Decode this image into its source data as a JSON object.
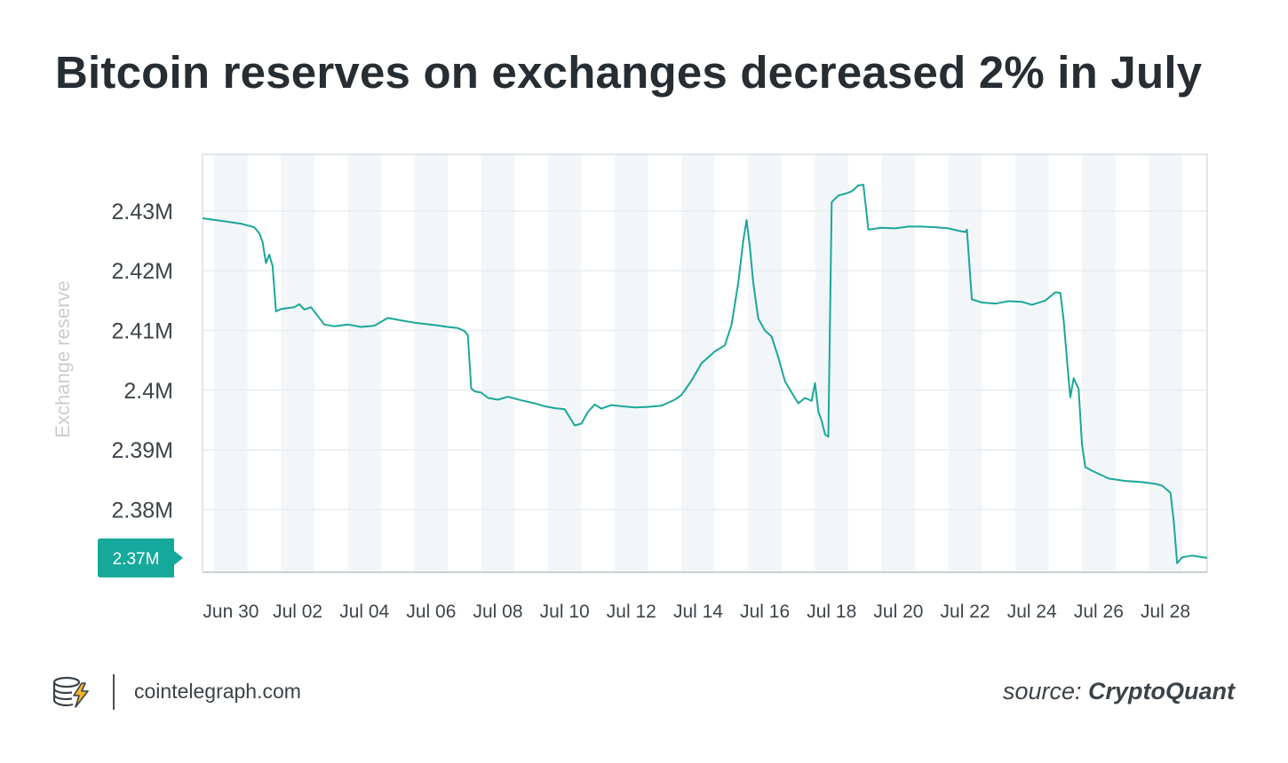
{
  "chart_data": {
    "type": "line",
    "title": "Bitcoin reserves on exchanges decreased 2% in July",
    "xlabel": "",
    "ylabel": "Exchange reserve",
    "x_tick_labels": [
      "Jun 30",
      "Jul 02",
      "Jul 04",
      "Jul 06",
      "Jul 08",
      "Jul 10",
      "Jul 12",
      "Jul 14",
      "Jul 16",
      "Jul 18",
      "Jul 20",
      "Jul 22",
      "Jul 24",
      "Jul 26",
      "Jul 28"
    ],
    "y_tick_labels": [
      "2.43M",
      "2.42M",
      "2.41M",
      "2.4M",
      "2.39M",
      "2.38M"
    ],
    "y_ticks": [
      2430000,
      2420000,
      2410000,
      2400000,
      2390000,
      2380000
    ],
    "ylim": [
      2369500,
      2439500
    ],
    "x_range_days": [
      -0.35,
      29.75
    ],
    "current_value_label": "2.37M",
    "colors": {
      "line": "#1aa79a",
      "badge": "#15a99b",
      "band": "#f3f6f8",
      "grid": "#e9edf0",
      "axis_label": "#c9ced2"
    },
    "series": [
      {
        "name": "Exchange reserve",
        "x": [
          -0.35,
          0.3,
          0.8,
          1.2,
          1.35,
          1.45,
          1.55,
          1.65,
          1.75,
          1.85,
          2.0,
          2.4,
          2.55,
          2.7,
          2.9,
          3.3,
          3.6,
          4.0,
          4.4,
          4.8,
          5.2,
          5.6,
          6.0,
          6.6,
          7.0,
          7.3,
          7.5,
          7.6,
          7.7,
          7.8,
          8.0,
          8.2,
          8.5,
          8.8,
          9.2,
          9.6,
          9.9,
          10.2,
          10.5,
          10.8,
          11.0,
          11.2,
          11.4,
          11.6,
          11.9,
          12.2,
          12.6,
          13.0,
          13.4,
          13.8,
          14.0,
          14.3,
          14.6,
          15.0,
          15.3,
          15.5,
          15.7,
          15.85,
          15.95,
          16.05,
          16.15,
          16.3,
          16.5,
          16.7,
          16.9,
          17.1,
          17.3,
          17.5,
          17.7,
          17.9,
          18.0,
          18.1,
          18.2,
          18.3,
          18.4,
          18.5,
          18.7,
          18.9,
          19.1,
          19.3,
          19.45,
          19.6,
          20.0,
          20.4,
          20.8,
          21.2,
          21.6,
          22.0,
          22.3,
          22.5,
          22.55,
          22.7,
          23.0,
          23.4,
          23.8,
          24.2,
          24.5,
          24.9,
          25.2,
          25.35,
          25.45,
          25.55,
          25.65,
          25.75,
          25.9,
          26.0,
          26.1,
          26.3,
          26.8,
          27.3,
          27.8,
          28.2,
          28.4,
          28.55,
          28.65,
          28.75,
          28.85,
          29.0,
          29.3,
          29.75
        ],
        "values": [
          2428800,
          2428300,
          2427900,
          2427300,
          2426300,
          2424800,
          2421300,
          2422700,
          2420800,
          2413200,
          2413600,
          2413900,
          2414400,
          2413500,
          2413900,
          2411000,
          2410700,
          2411000,
          2410600,
          2410800,
          2412100,
          2411700,
          2411300,
          2410900,
          2410600,
          2410400,
          2409900,
          2409200,
          2400300,
          2399800,
          2399600,
          2398700,
          2398400,
          2398900,
          2398300,
          2397800,
          2397300,
          2397000,
          2396800,
          2394100,
          2394400,
          2396400,
          2397600,
          2396900,
          2397500,
          2397300,
          2397100,
          2397200,
          2397400,
          2398400,
          2399200,
          2401600,
          2404500,
          2406500,
          2407500,
          2411000,
          2418000,
          2425000,
          2428500,
          2424000,
          2418000,
          2412000,
          2410000,
          2409000,
          2405500,
          2401500,
          2399600,
          2397800,
          2398700,
          2398200,
          2401200,
          2396400,
          2394900,
          2392600,
          2392200,
          2431500,
          2432600,
          2432900,
          2433300,
          2434300,
          2434400,
          2426900,
          2427200,
          2427100,
          2427400,
          2427400,
          2427300,
          2427100,
          2426700,
          2426500,
          2426900,
          2415200,
          2414700,
          2414500,
          2414900,
          2414800,
          2414300,
          2415000,
          2416400,
          2416300,
          2411800,
          2405000,
          2398800,
          2402000,
          2400200,
          2390800,
          2387100,
          2386500,
          2385200,
          2384800,
          2384600,
          2384300,
          2384000,
          2383300,
          2382800,
          2378000,
          2371000,
          2372000,
          2372300,
          2371900
        ]
      }
    ]
  },
  "footer": {
    "site": "cointelegraph.com",
    "source_label": "source:",
    "source_name": "CryptoQuant"
  }
}
